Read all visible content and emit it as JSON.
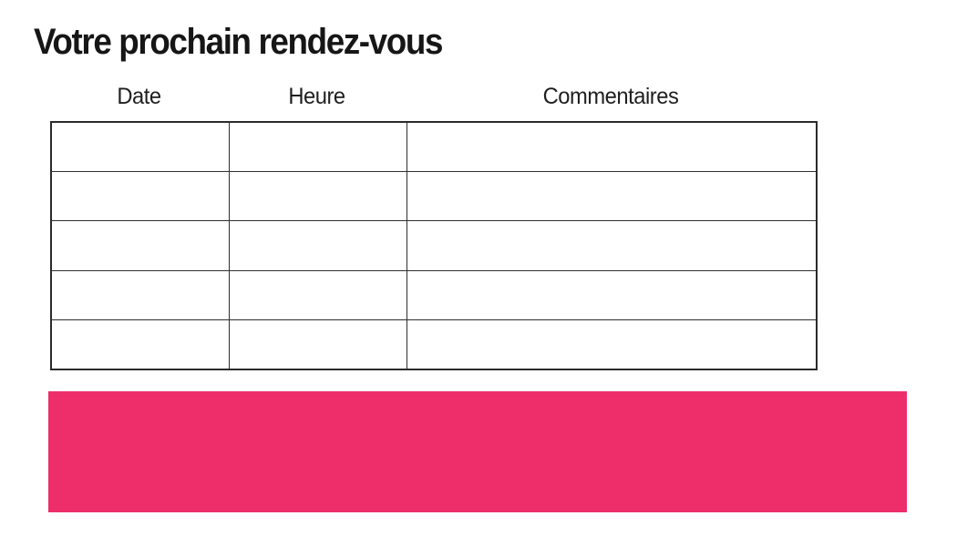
{
  "page": {
    "background": "#ffffff"
  },
  "header": {
    "title": "Votre prochain rendez-vous"
  },
  "table": {
    "columns": [
      {
        "label": "Date"
      },
      {
        "label": "Heure"
      },
      {
        "label": "Commentaires"
      }
    ],
    "row_count": 5,
    "rows": [
      [
        "",
        "",
        ""
      ],
      [
        "",
        "",
        ""
      ],
      [
        "",
        "",
        ""
      ],
      [
        "",
        "",
        ""
      ],
      [
        "",
        "",
        ""
      ]
    ]
  },
  "banner": {
    "text": ""
  },
  "colors": {
    "accent_pink": "#ED2E6B",
    "table_border": "#2b2b2b",
    "text": "#1a1a1a"
  }
}
